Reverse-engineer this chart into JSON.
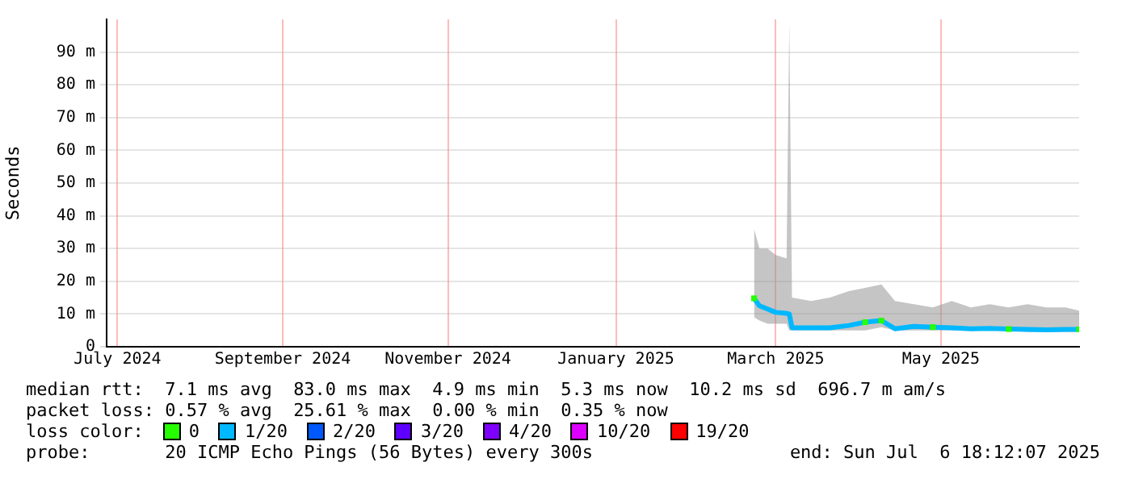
{
  "chart_data": {
    "type": "line",
    "ylabel": "Seconds",
    "x": [
      "2025-03-08",
      "2025-03-10",
      "2025-03-13",
      "2025-03-16",
      "2025-03-20",
      "2025-03-21",
      "2025-03-22",
      "2025-03-29",
      "2025-04-05",
      "2025-04-12",
      "2025-04-18",
      "2025-04-24",
      "2025-04-29",
      "2025-05-06",
      "2025-05-13",
      "2025-05-20",
      "2025-05-27",
      "2025-06-03",
      "2025-06-10",
      "2025-06-17",
      "2025-06-24",
      "2025-07-01",
      "2025-07-06"
    ],
    "xlim": [
      "2024-07-12",
      "2025-07-06"
    ],
    "xticks": [
      {
        "value": "2024-07-16",
        "label": "July 2024"
      },
      {
        "value": "2024-09-15",
        "label": "September 2024"
      },
      {
        "value": "2024-11-15",
        "label": "November 2024"
      },
      {
        "value": "2025-01-16",
        "label": "January 2025"
      },
      {
        "value": "2025-03-16",
        "label": "March 2025"
      },
      {
        "value": "2025-05-16",
        "label": "May 2025"
      }
    ],
    "ylim": [
      0,
      100
    ],
    "yticks": [
      0,
      {
        "value": 10,
        "label": "10 m"
      },
      {
        "value": 20,
        "label": "20 m"
      },
      {
        "value": 30,
        "label": "30 m"
      },
      {
        "value": 40,
        "label": "40 m"
      },
      {
        "value": 50,
        "label": "50 m"
      },
      {
        "value": 60,
        "label": "60 m"
      },
      {
        "value": 70,
        "label": "70 m"
      },
      {
        "value": 80,
        "label": "80 m"
      },
      {
        "value": 90,
        "label": "90 m"
      }
    ],
    "grid": true,
    "legend": "bottom",
    "legend_title": "loss color:",
    "series": [
      {
        "name": "0",
        "color": "#26ff00",
        "type": "scatter",
        "marker": "square",
        "values": [
          14.8,
          null,
          null,
          null,
          null,
          null,
          null,
          null,
          null,
          null,
          7.5,
          8,
          null,
          null,
          6,
          null,
          null,
          null,
          5.4,
          null,
          null,
          null,
          5.3
        ]
      },
      {
        "name": "1/20",
        "color": "#00b8ff",
        "values": [
          14.8,
          12.5,
          11.5,
          10.5,
          10.2,
          10,
          5.8,
          5.8,
          5.8,
          6.5,
          7.5,
          8,
          5.5,
          6.2,
          6,
          5.8,
          5.5,
          5.6,
          5.4,
          5.3,
          5.2,
          5.3,
          5.3
        ],
        "lower": [
          9,
          8,
          7,
          7,
          7,
          5,
          5,
          5,
          5,
          5,
          5,
          6,
          5,
          5,
          5,
          5,
          5,
          5,
          5,
          4.5,
          4.5,
          4.5,
          4.5
        ],
        "upper": [
          36,
          30,
          30,
          28,
          27,
          99,
          15,
          14,
          15,
          17,
          18,
          19,
          14,
          13,
          12,
          14,
          12,
          13,
          12,
          13,
          12,
          12,
          11
        ]
      },
      {
        "name": "2/20",
        "color": "#0059ff",
        "values": [
          null,
          null,
          null,
          null,
          null,
          null,
          null,
          null,
          null,
          null,
          null,
          null,
          null,
          null,
          null,
          null,
          null,
          null,
          null,
          null,
          null,
          null,
          null
        ]
      },
      {
        "name": "3/20",
        "color": "#5e00ff",
        "values": [
          null,
          null,
          null,
          null,
          null,
          null,
          null,
          null,
          null,
          null,
          null,
          null,
          null,
          null,
          null,
          null,
          null,
          null,
          null,
          null,
          null,
          null,
          null
        ]
      },
      {
        "name": "4/20",
        "color": "#7e00ff",
        "values": [
          null,
          null,
          null,
          null,
          null,
          null,
          null,
          null,
          null,
          null,
          null,
          null,
          null,
          null,
          null,
          null,
          null,
          null,
          null,
          null,
          null,
          null,
          null
        ]
      },
      {
        "name": "10/20",
        "color": "#dd00ff",
        "values": [
          null,
          null,
          null,
          null,
          null,
          null,
          null,
          null,
          null,
          null,
          null,
          null,
          null,
          null,
          null,
          null,
          null,
          null,
          null,
          null,
          null,
          null,
          null
        ]
      },
      {
        "name": "19/20",
        "color": "#ff0000",
        "values": [
          null,
          null,
          null,
          null,
          null,
          null,
          null,
          null,
          null,
          null,
          null,
          null,
          null,
          null,
          null,
          null,
          null,
          null,
          null,
          null,
          null,
          null,
          null
        ]
      }
    ],
    "annotations": [
      "median rtt:  7.1 ms avg  83.0 ms max  4.9 ms min  5.3 ms now  10.2 ms sd  696.7 m am/s",
      "packet loss: 0.57 % avg  25.61 % max  0.00 % min  0.35 % now",
      "probe:       20 ICMP Echo Pings (56 Bytes) every 300s",
      "end: Sun Jul  6 18:12:07 2025"
    ]
  }
}
